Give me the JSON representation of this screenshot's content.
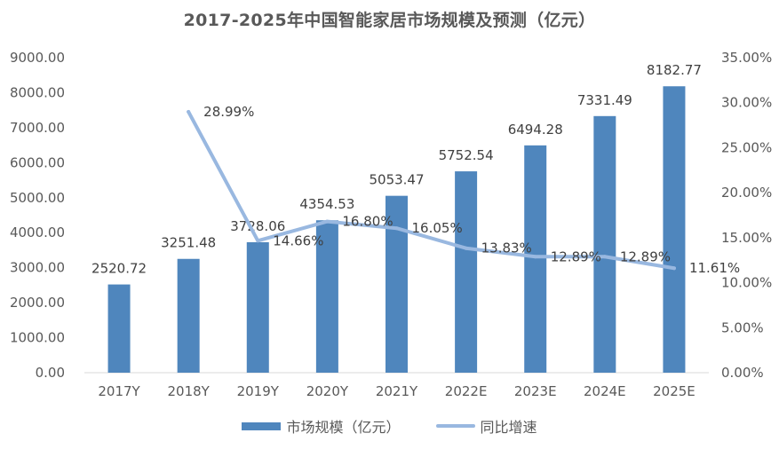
{
  "chart_data": {
    "type": "bar",
    "title": "2017-2025年中国智能家居市场规模及预测（亿元）",
    "categories": [
      "2017Y",
      "2018Y",
      "2019Y",
      "2020Y",
      "2021Y",
      "2022E",
      "2023E",
      "2024E",
      "2025E"
    ],
    "series": [
      {
        "name": "市场规模（亿元）",
        "type": "bar",
        "axis": "left",
        "color": "#4f86bd",
        "values": [
          2520.72,
          3251.48,
          3728.06,
          4354.53,
          5053.47,
          5752.54,
          6494.28,
          7331.49,
          8182.77
        ],
        "labels": [
          "2520.72",
          "3251.48",
          "3728.06",
          "4354.53",
          "5053.47",
          "5752.54",
          "6494.28",
          "7331.49",
          "8182.77"
        ]
      },
      {
        "name": "同比增速",
        "type": "line",
        "axis": "right",
        "color": "#99b8e0",
        "values": [
          null,
          28.99,
          14.66,
          16.8,
          16.05,
          13.83,
          12.89,
          12.89,
          11.61
        ],
        "labels": [
          "",
          "28.99%",
          "14.66%",
          "16.80%",
          "16.05%",
          "13.83%",
          "12.89%",
          "12.89%",
          "11.61%"
        ]
      }
    ],
    "y_left": {
      "min": 0,
      "max": 9000,
      "ticks": [
        "0.00",
        "1000.00",
        "2000.00",
        "3000.00",
        "4000.00",
        "5000.00",
        "6000.00",
        "7000.00",
        "8000.00",
        "9000.00"
      ]
    },
    "y_right": {
      "min": 0,
      "max": 35,
      "ticks": [
        "0.00%",
        "5.00%",
        "10.00%",
        "15.00%",
        "20.00%",
        "25.00%",
        "30.00%",
        "35.00%"
      ]
    },
    "grid": false,
    "legend_position": "bottom"
  }
}
